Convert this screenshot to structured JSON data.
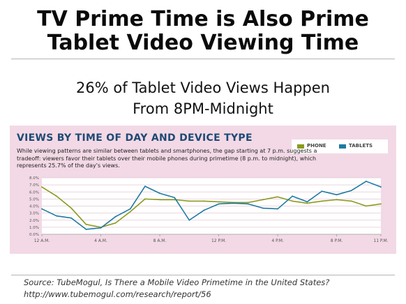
{
  "headline": {
    "line1": "TV Prime Time is Also Prime",
    "line2": "Tablet Video Viewing Time"
  },
  "subheadline": {
    "line1": "26% of Tablet Video Views Happen",
    "line2": "From 8PM-Midnight"
  },
  "source": {
    "line1": "Source:  TubeMogul, Is There a Mobile Video Primetime in the United States?",
    "line2": "http://www.tubemogul.com/research/report/56"
  },
  "colors": {
    "panel_bg": "#f2d9e5",
    "title": "#1e4a76",
    "phone": "#8a9a1e",
    "tablets": "#1d7aa2"
  },
  "chart_data": {
    "type": "line",
    "title": "VIEWS BY TIME OF DAY AND DEVICE TYPE",
    "description": "While viewing patterns are similar between tablets and smartphones, the gap starting at 7 p.m. suggests a tradeoff: viewers favor their tablets over their mobile phones during primetime (8 p.m. to midnight), which represents 25.7% of the day's views.",
    "xlabel": "",
    "ylabel": "",
    "x_labels": [
      "12 A.M.",
      "4 A.M.",
      "8 A.M.",
      "12 P.M.",
      "4 P.M.",
      "8 P.M.",
      "11 P.M."
    ],
    "x_label_hours": [
      0,
      4,
      8,
      12,
      16,
      20,
      23
    ],
    "y_ticks": [
      "0.0%",
      "1.0%",
      "2.0%",
      "3.0%",
      "4.0%",
      "5.0%",
      "6.0%",
      "7.0%",
      "8.0%"
    ],
    "ylim": [
      0,
      8
    ],
    "legend_position": "top-right",
    "grid": true,
    "hours": [
      0,
      1,
      2,
      3,
      4,
      5,
      6,
      7,
      8,
      9,
      10,
      11,
      12,
      13,
      14,
      15,
      16,
      17,
      18,
      19,
      20,
      21,
      22,
      23
    ],
    "series": [
      {
        "name": "PHONE",
        "values": [
          6.7,
          5.4,
          3.7,
          1.4,
          1.0,
          1.6,
          3.2,
          5.0,
          4.9,
          4.9,
          4.7,
          4.7,
          4.6,
          4.5,
          4.5,
          4.9,
          5.3,
          4.7,
          4.4,
          4.7,
          4.9,
          4.7,
          4.0,
          4.3
        ]
      },
      {
        "name": "TABLETS",
        "values": [
          3.6,
          2.6,
          2.3,
          0.7,
          0.9,
          2.5,
          3.6,
          6.8,
          5.8,
          5.2,
          2.0,
          3.4,
          4.3,
          4.4,
          4.3,
          3.7,
          3.6,
          5.4,
          4.6,
          6.1,
          5.6,
          6.2,
          7.5,
          6.7
        ]
      }
    ]
  }
}
